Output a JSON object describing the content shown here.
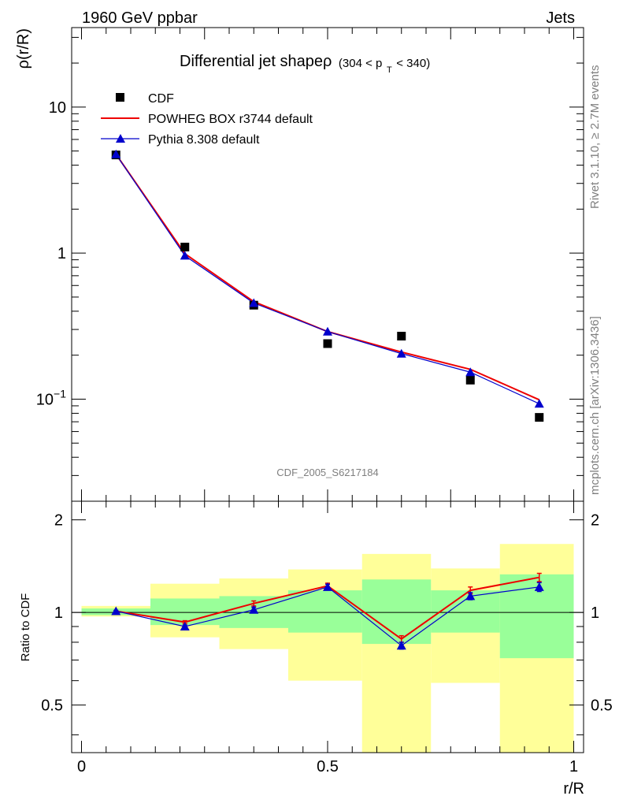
{
  "header": {
    "left_label": "1960 GeV ppbar",
    "right_label": "Jets"
  },
  "side_text": {
    "rivet": "Rivet 3.1.10, ≥ 2.7M events",
    "mcplots": "mcplots.cern.ch [arXiv:1306.3436]"
  },
  "chart_data": [
    {
      "type": "line",
      "panel": "main",
      "title": "Differential jet shapeρ",
      "title_suffix": "(304 < p",
      "title_sub": "T",
      "title_end": " < 340)",
      "ylabel": "ρ(r/R)",
      "xlabel": "r/R",
      "yscale": "log",
      "ylim": [
        0.02,
        35
      ],
      "xlim": [
        -0.02,
        1.02
      ],
      "y_ticks": [
        {
          "value": 10,
          "label": "10"
        },
        {
          "value": 1,
          "label": "1"
        },
        {
          "value": 0.1,
          "label": "10",
          "exp": "−1"
        }
      ],
      "watermark": "CDF_2005_S6217184",
      "legend": {
        "position": "top-left"
      },
      "x": [
        0.07,
        0.21,
        0.35,
        0.5,
        0.65,
        0.79,
        0.93
      ],
      "series": [
        {
          "name": "CDF",
          "marker": "square",
          "color": "#000000",
          "values": [
            4.7,
            1.1,
            0.44,
            0.24,
            0.27,
            0.135,
            0.075
          ]
        },
        {
          "name": "POWHEG BOX r3744 default",
          "marker": "none",
          "color": "#ee0000",
          "values": [
            4.75,
            0.99,
            0.465,
            0.29,
            0.21,
            0.16,
            0.099
          ]
        },
        {
          "name": "Pythia 8.308 default",
          "marker": "triangle",
          "color": "#0000cc",
          "values": [
            4.75,
            0.96,
            0.455,
            0.29,
            0.205,
            0.153,
            0.093
          ]
        }
      ]
    },
    {
      "type": "line",
      "panel": "ratio",
      "ylabel": "Ratio to CDF",
      "xlabel": "r/R",
      "ylim": [
        0.35,
        2.3
      ],
      "xlim": [
        -0.02,
        1.02
      ],
      "x_ticks": [
        {
          "value": 0,
          "label": "0"
        },
        {
          "value": 0.5,
          "label": "0.5"
        },
        {
          "value": 1,
          "label": "1"
        }
      ],
      "y_ticks": [
        {
          "value": 2,
          "label": "2"
        },
        {
          "value": 1,
          "label": "1"
        },
        {
          "value": 0.5,
          "label": "0.5"
        }
      ],
      "bands": [
        {
          "x0": 0.0,
          "x1": 0.14,
          "inner": [
            0.98,
            1.03
          ],
          "outer": [
            0.97,
            1.05
          ]
        },
        {
          "x0": 0.14,
          "x1": 0.28,
          "inner": [
            0.91,
            1.11
          ],
          "outer": [
            0.83,
            1.24
          ]
        },
        {
          "x0": 0.28,
          "x1": 0.42,
          "inner": [
            0.89,
            1.13
          ],
          "outer": [
            0.76,
            1.29
          ]
        },
        {
          "x0": 0.42,
          "x1": 0.57,
          "inner": [
            0.86,
            1.18
          ],
          "outer": [
            0.6,
            1.38
          ]
        },
        {
          "x0": 0.57,
          "x1": 0.71,
          "inner": [
            0.79,
            1.28
          ],
          "outer": [
            0.3,
            1.55
          ]
        },
        {
          "x0": 0.71,
          "x1": 0.85,
          "inner": [
            0.86,
            1.18
          ],
          "outer": [
            0.59,
            1.39
          ]
        },
        {
          "x0": 0.85,
          "x1": 1.0,
          "inner": [
            0.71,
            1.33
          ],
          "outer": [
            0.3,
            1.67
          ]
        }
      ],
      "x": [
        0.07,
        0.21,
        0.35,
        0.5,
        0.65,
        0.79,
        0.93
      ],
      "series": [
        {
          "name": "POWHEG BOX r3744 default",
          "marker": "none",
          "color": "#ee0000",
          "values": [
            1.01,
            0.93,
            1.07,
            1.22,
            0.82,
            1.18,
            1.3
          ],
          "errors": [
            0.005,
            0.01,
            0.02,
            0.025,
            0.02,
            0.03,
            0.04
          ]
        },
        {
          "name": "Pythia 8.308 default",
          "marker": "triangle",
          "color": "#0000cc",
          "values": [
            1.01,
            0.9,
            1.02,
            1.21,
            0.78,
            1.13,
            1.21
          ],
          "errors": [
            0.005,
            0.01,
            0.02,
            0.025,
            0.02,
            0.03,
            0.04
          ]
        }
      ]
    }
  ]
}
